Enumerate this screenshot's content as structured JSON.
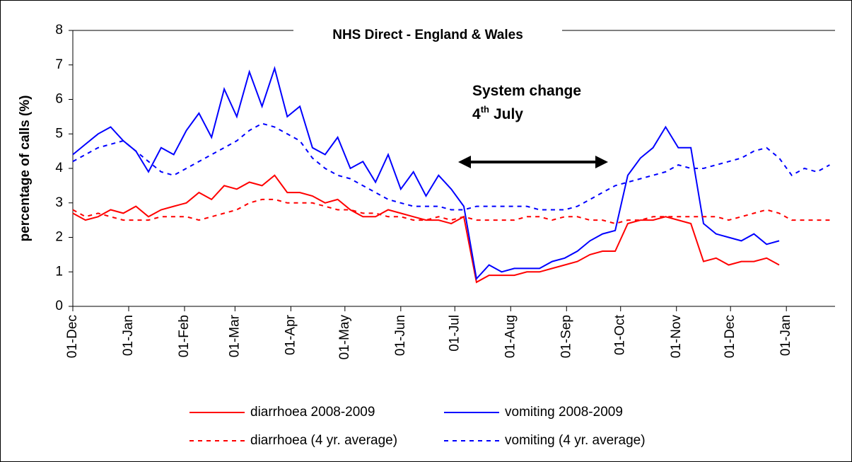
{
  "chart_data": {
    "type": "line",
    "title": "NHS Direct - England & Wales",
    "ylabel": "percentage of calls (%)",
    "annotation": {
      "line1": "System change",
      "day": "4",
      "suffix": "th",
      "month": "July"
    },
    "x": [
      0,
      7,
      14,
      21,
      28,
      35,
      42,
      49,
      56,
      63,
      70,
      77,
      84,
      91,
      98,
      105,
      112,
      119,
      126,
      133,
      140,
      147,
      154,
      161,
      168,
      175,
      182,
      189,
      196,
      203,
      210,
      217,
      224,
      231,
      238,
      245,
      252,
      259,
      266,
      273,
      280,
      287,
      294,
      301,
      308,
      315,
      322,
      329,
      336,
      343,
      350,
      357,
      364,
      371,
      378,
      385,
      392,
      399,
      406,
      413,
      420
    ],
    "xlim": [
      0,
      423
    ],
    "xticks": [
      {
        "value": 0,
        "label": "01-Dec"
      },
      {
        "value": 31,
        "label": "01-Jan"
      },
      {
        "value": 62,
        "label": "01-Feb"
      },
      {
        "value": 90,
        "label": "01-Mar"
      },
      {
        "value": 121,
        "label": "01-Apr"
      },
      {
        "value": 151,
        "label": "01-May"
      },
      {
        "value": 182,
        "label": "01-Jun"
      },
      {
        "value": 212,
        "label": "01-Jul"
      },
      {
        "value": 243,
        "label": "01-Aug"
      },
      {
        "value": 274,
        "label": "01-Sep"
      },
      {
        "value": 304,
        "label": "01-Oct"
      },
      {
        "value": 335,
        "label": "01-Nov"
      },
      {
        "value": 365,
        "label": "01-Dec"
      },
      {
        "value": 396,
        "label": "01-Jan"
      }
    ],
    "ylim": [
      0,
      8
    ],
    "yticks": [
      0,
      1,
      2,
      3,
      4,
      5,
      6,
      7,
      8
    ],
    "series": [
      {
        "name": "diarrhoea 2008-2009",
        "color": "#ff0000",
        "dashed": false,
        "values": [
          2.7,
          2.5,
          2.6,
          2.8,
          2.7,
          2.9,
          2.6,
          2.8,
          2.9,
          3.0,
          3.3,
          3.1,
          3.5,
          3.4,
          3.6,
          3.5,
          3.8,
          3.3,
          3.3,
          3.2,
          3.0,
          3.1,
          2.8,
          2.6,
          2.6,
          2.8,
          2.7,
          2.6,
          2.5,
          2.5,
          2.4,
          2.6,
          0.7,
          0.9,
          0.9,
          0.9,
          1.0,
          1.0,
          1.1,
          1.2,
          1.3,
          1.5,
          1.6,
          1.6,
          2.4,
          2.5,
          2.5,
          2.6,
          2.5,
          2.4,
          1.3,
          1.4,
          1.2,
          1.3,
          1.3,
          1.4,
          1.2,
          null,
          null,
          null,
          null
        ]
      },
      {
        "name": "vomiting 2008-2009",
        "color": "#0000ff",
        "dashed": false,
        "values": [
          4.4,
          4.7,
          5.0,
          5.2,
          4.8,
          4.5,
          3.9,
          4.6,
          4.4,
          5.1,
          5.6,
          4.9,
          6.3,
          5.5,
          6.8,
          5.8,
          6.9,
          5.5,
          5.8,
          4.6,
          4.4,
          4.9,
          4.0,
          4.2,
          3.6,
          4.4,
          3.4,
          3.9,
          3.2,
          3.8,
          3.4,
          2.9,
          0.8,
          1.2,
          1.0,
          1.1,
          1.1,
          1.1,
          1.3,
          1.4,
          1.6,
          1.9,
          2.1,
          2.2,
          3.8,
          4.3,
          4.6,
          5.2,
          4.6,
          4.6,
          2.4,
          2.1,
          2.0,
          1.9,
          2.1,
          1.8,
          1.9,
          null,
          null,
          null,
          null
        ]
      },
      {
        "name": "diarrhoea (4 yr. average)",
        "color": "#ff0000",
        "dashed": true,
        "values": [
          2.8,
          2.6,
          2.7,
          2.6,
          2.5,
          2.5,
          2.5,
          2.6,
          2.6,
          2.6,
          2.5,
          2.6,
          2.7,
          2.8,
          3.0,
          3.1,
          3.1,
          3.0,
          3.0,
          3.0,
          2.9,
          2.8,
          2.8,
          2.7,
          2.7,
          2.6,
          2.6,
          2.5,
          2.5,
          2.6,
          2.5,
          2.6,
          2.5,
          2.5,
          2.5,
          2.5,
          2.6,
          2.6,
          2.5,
          2.6,
          2.6,
          2.5,
          2.5,
          2.4,
          2.5,
          2.5,
          2.6,
          2.6,
          2.6,
          2.6,
          2.6,
          2.6,
          2.5,
          2.6,
          2.7,
          2.8,
          2.7,
          2.5,
          2.5,
          2.5,
          2.5
        ]
      },
      {
        "name": "vomiting (4 yr. average)",
        "color": "#0000ff",
        "dashed": true,
        "values": [
          4.2,
          4.4,
          4.6,
          4.7,
          4.8,
          4.5,
          4.2,
          3.9,
          3.8,
          4.0,
          4.2,
          4.4,
          4.6,
          4.8,
          5.1,
          5.3,
          5.2,
          5.0,
          4.8,
          4.3,
          4.0,
          3.8,
          3.7,
          3.5,
          3.3,
          3.1,
          3.0,
          2.9,
          2.9,
          2.9,
          2.8,
          2.8,
          2.9,
          2.9,
          2.9,
          2.9,
          2.9,
          2.8,
          2.8,
          2.8,
          2.9,
          3.1,
          3.3,
          3.5,
          3.6,
          3.7,
          3.8,
          3.9,
          4.1,
          4.0,
          4.0,
          4.1,
          4.2,
          4.3,
          4.5,
          4.6,
          4.3,
          3.8,
          4.0,
          3.9,
          4.1
        ]
      }
    ]
  }
}
